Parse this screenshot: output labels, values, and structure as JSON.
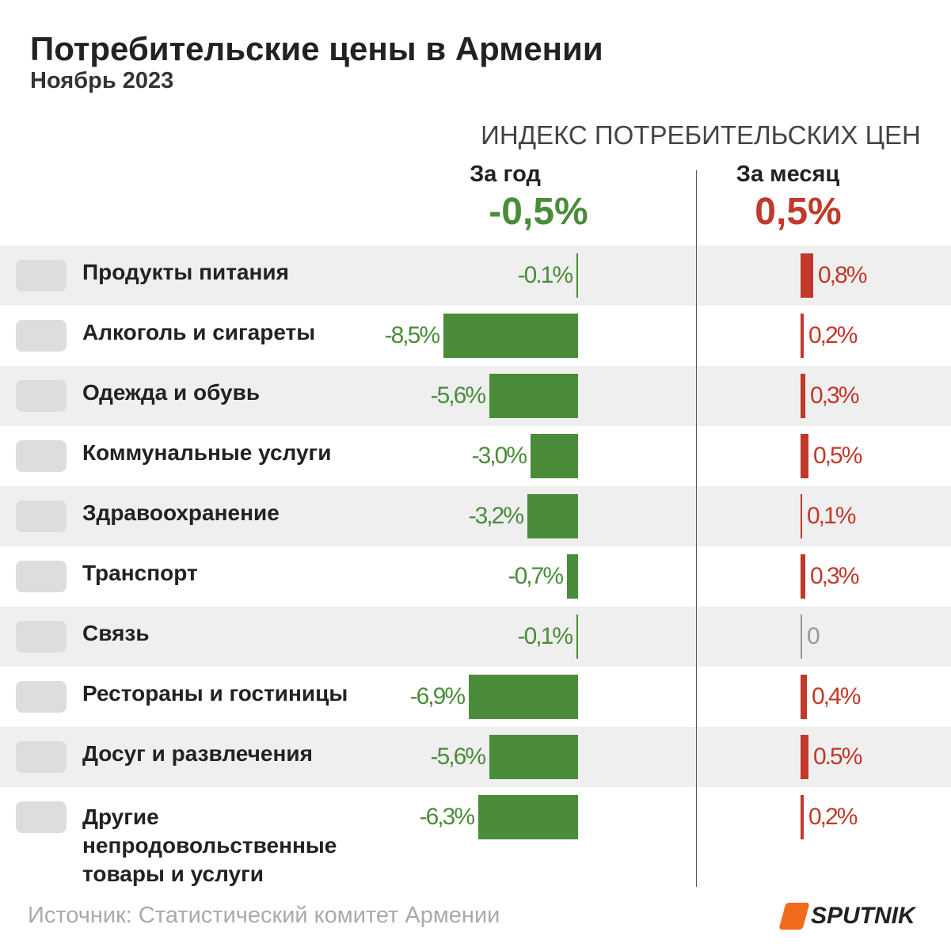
{
  "chart_data": {
    "type": "bar",
    "title": "Потребительские цены в Армении",
    "subtitle": "Ноябрь 2023",
    "header": "ИНДЕКС ПОТРЕБИТЕЛЬСКИХ ЦЕН",
    "categories": [
      "Продукты питания",
      "Алкоголь и сигареты",
      "Одежда и обувь",
      "Коммунальные услуги",
      "Здравоохранение",
      "Транспорт",
      "Связь",
      "Рестораны и гостиницы",
      "Досуг и развлечения",
      "Другие непродовольственные товары и услуги"
    ],
    "series": [
      {
        "name": "За год",
        "color": "#4a8c3a",
        "total": -0.5,
        "total_label": "-0,5%",
        "values": [
          -0.1,
          -8.5,
          -5.6,
          -3.0,
          -3.2,
          -0.7,
          -0.1,
          -6.9,
          -5.6,
          -6.3
        ],
        "value_labels": [
          "-0.1%",
          "-8,5%",
          "-5,6%",
          "-3,0%",
          "-3,2%",
          "-0,7%",
          "-0,1%",
          "-6,9%",
          "-5,6%",
          "-6,3%"
        ]
      },
      {
        "name": "За месяц",
        "color": "#c0392b",
        "zero_color": "#999999",
        "total": 0.5,
        "total_label": "0,5%",
        "values": [
          0.8,
          0.2,
          0.3,
          0.5,
          0.1,
          0.3,
          0,
          0.4,
          0.5,
          0.2
        ],
        "value_labels": [
          "0,8%",
          "0,2%",
          "0,3%",
          "0,5%",
          "0,1%",
          "0,3%",
          "0",
          "0,4%",
          "0.5%",
          "0,2%"
        ]
      }
    ],
    "source": "Источник: Статистический комитет Армении",
    "brand": "SPUTNIK"
  }
}
